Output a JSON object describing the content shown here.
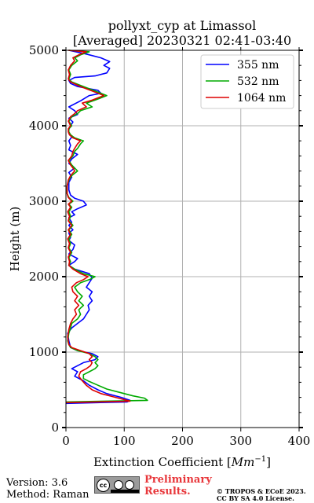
{
  "chart_data": {
    "type": "line",
    "title_line1": "pollyxt_cyp at Limassol",
    "title_line2": "[Averaged] 20230321 02:41-03:40",
    "xlabel": "Extinction Coefficient [",
    "xlabel_unit": "Mm",
    "xlabel_exp": "−1",
    "xlabel_end": "]",
    "ylabel": "Height (m)",
    "xlim": [
      0,
      400
    ],
    "ylim": [
      0,
      5000
    ],
    "xticks": [
      "0",
      "100",
      "200",
      "300",
      "400"
    ],
    "yticks": [
      "0",
      "1000",
      "2000",
      "3000",
      "4000",
      "5000"
    ],
    "grid": true,
    "legend_position": "top-right",
    "series": [
      {
        "name": "355 nm",
        "color": "#0000ff",
        "points": [
          [
            0,
            320
          ],
          [
            105,
            340
          ],
          [
            110,
            360
          ],
          [
            95,
            400
          ],
          [
            70,
            450
          ],
          [
            55,
            500
          ],
          [
            40,
            560
          ],
          [
            30,
            620
          ],
          [
            15,
            680
          ],
          [
            20,
            740
          ],
          [
            10,
            780
          ],
          [
            20,
            820
          ],
          [
            30,
            860
          ],
          [
            50,
            900
          ],
          [
            55,
            940
          ],
          [
            45,
            980
          ],
          [
            20,
            1020
          ],
          [
            8,
            1060
          ],
          [
            5,
            1150
          ],
          [
            3,
            1250
          ],
          [
            10,
            1320
          ],
          [
            20,
            1380
          ],
          [
            30,
            1440
          ],
          [
            35,
            1500
          ],
          [
            40,
            1560
          ],
          [
            38,
            1620
          ],
          [
            45,
            1680
          ],
          [
            40,
            1740
          ],
          [
            45,
            1800
          ],
          [
            35,
            1860
          ],
          [
            40,
            1920
          ],
          [
            45,
            1980
          ],
          [
            40,
            2040
          ],
          [
            15,
            2100
          ],
          [
            5,
            2150
          ],
          [
            15,
            2200
          ],
          [
            20,
            2240
          ],
          [
            5,
            2300
          ],
          [
            12,
            2360
          ],
          [
            15,
            2420
          ],
          [
            5,
            2480
          ],
          [
            8,
            2520
          ],
          [
            5,
            2580
          ],
          [
            12,
            2620
          ],
          [
            5,
            2680
          ],
          [
            10,
            2720
          ],
          [
            5,
            2780
          ],
          [
            15,
            2820
          ],
          [
            10,
            2860
          ],
          [
            20,
            2900
          ],
          [
            35,
            2950
          ],
          [
            30,
            3000
          ],
          [
            15,
            3040
          ],
          [
            8,
            3080
          ],
          [
            5,
            3150
          ],
          [
            5,
            3250
          ],
          [
            10,
            3320
          ],
          [
            5,
            3380
          ],
          [
            15,
            3440
          ],
          [
            5,
            3500
          ],
          [
            10,
            3560
          ],
          [
            20,
            3620
          ],
          [
            5,
            3680
          ],
          [
            8,
            3740
          ],
          [
            5,
            3800
          ],
          [
            10,
            3850
          ],
          [
            5,
            3900
          ],
          [
            5,
            3950
          ],
          [
            8,
            4000
          ],
          [
            12,
            4050
          ],
          [
            5,
            4100
          ],
          [
            20,
            4150
          ],
          [
            15,
            4200
          ],
          [
            5,
            4250
          ],
          [
            25,
            4330
          ],
          [
            40,
            4400
          ],
          [
            60,
            4430
          ],
          [
            55,
            4470
          ],
          [
            20,
            4520
          ],
          [
            8,
            4560
          ],
          [
            5,
            4600
          ],
          [
            15,
            4640
          ],
          [
            50,
            4660
          ],
          [
            70,
            4700
          ],
          [
            75,
            4760
          ],
          [
            65,
            4800
          ],
          [
            75,
            4850
          ],
          [
            60,
            4900
          ],
          [
            35,
            4950
          ],
          [
            5,
            5000
          ]
        ]
      },
      {
        "name": "532 nm",
        "color": "#00aa00",
        "points": [
          [
            0,
            340
          ],
          [
            140,
            360
          ],
          [
            135,
            390
          ],
          [
            115,
            420
          ],
          [
            95,
            460
          ],
          [
            70,
            510
          ],
          [
            55,
            560
          ],
          [
            40,
            610
          ],
          [
            30,
            650
          ],
          [
            30,
            700
          ],
          [
            40,
            740
          ],
          [
            50,
            780
          ],
          [
            55,
            820
          ],
          [
            50,
            860
          ],
          [
            55,
            900
          ],
          [
            50,
            940
          ],
          [
            40,
            980
          ],
          [
            20,
            1020
          ],
          [
            8,
            1060
          ],
          [
            5,
            1100
          ],
          [
            3,
            1150
          ],
          [
            5,
            1250
          ],
          [
            8,
            1320
          ],
          [
            10,
            1380
          ],
          [
            20,
            1440
          ],
          [
            25,
            1500
          ],
          [
            22,
            1560
          ],
          [
            30,
            1620
          ],
          [
            22,
            1680
          ],
          [
            28,
            1740
          ],
          [
            20,
            1800
          ],
          [
            15,
            1860
          ],
          [
            25,
            1920
          ],
          [
            40,
            1960
          ],
          [
            50,
            2000
          ],
          [
            30,
            2040
          ],
          [
            15,
            2100
          ],
          [
            5,
            2150
          ],
          [
            8,
            2200
          ],
          [
            5,
            2250
          ],
          [
            10,
            2320
          ],
          [
            5,
            2380
          ],
          [
            8,
            2440
          ],
          [
            5,
            2500
          ],
          [
            10,
            2560
          ],
          [
            5,
            2620
          ],
          [
            12,
            2680
          ],
          [
            5,
            2740
          ],
          [
            8,
            2800
          ],
          [
            5,
            2860
          ],
          [
            10,
            2920
          ],
          [
            5,
            2960
          ],
          [
            12,
            3000
          ],
          [
            5,
            3050
          ],
          [
            2,
            3100
          ],
          [
            2,
            3200
          ],
          [
            5,
            3280
          ],
          [
            10,
            3340
          ],
          [
            20,
            3400
          ],
          [
            15,
            3440
          ],
          [
            10,
            3480
          ],
          [
            5,
            3540
          ],
          [
            12,
            3600
          ],
          [
            15,
            3660
          ],
          [
            20,
            3700
          ],
          [
            25,
            3760
          ],
          [
            30,
            3800
          ],
          [
            15,
            3840
          ],
          [
            8,
            3880
          ],
          [
            5,
            3920
          ],
          [
            5,
            3960
          ],
          [
            10,
            4000
          ],
          [
            5,
            4060
          ],
          [
            10,
            4120
          ],
          [
            20,
            4160
          ],
          [
            25,
            4200
          ],
          [
            45,
            4250
          ],
          [
            35,
            4300
          ],
          [
            50,
            4340
          ],
          [
            70,
            4400
          ],
          [
            50,
            4460
          ],
          [
            30,
            4520
          ],
          [
            10,
            4580
          ],
          [
            5,
            4620
          ],
          [
            8,
            4680
          ],
          [
            5,
            4740
          ],
          [
            10,
            4800
          ],
          [
            20,
            4860
          ],
          [
            15,
            4900
          ],
          [
            25,
            4940
          ],
          [
            40,
            4980
          ],
          [
            5,
            5000
          ]
        ]
      },
      {
        "name": "1064 nm",
        "color": "#dd0000",
        "points": [
          [
            0,
            330
          ],
          [
            110,
            350
          ],
          [
            100,
            370
          ],
          [
            80,
            410
          ],
          [
            60,
            450
          ],
          [
            45,
            500
          ],
          [
            35,
            560
          ],
          [
            28,
            620
          ],
          [
            22,
            680
          ],
          [
            25,
            740
          ],
          [
            35,
            780
          ],
          [
            42,
            820
          ],
          [
            45,
            860
          ],
          [
            40,
            900
          ],
          [
            45,
            940
          ],
          [
            40,
            980
          ],
          [
            25,
            1020
          ],
          [
            10,
            1060
          ],
          [
            5,
            1100
          ],
          [
            3,
            1200
          ],
          [
            5,
            1300
          ],
          [
            8,
            1380
          ],
          [
            12,
            1440
          ],
          [
            18,
            1500
          ],
          [
            15,
            1560
          ],
          [
            22,
            1620
          ],
          [
            15,
            1680
          ],
          [
            20,
            1740
          ],
          [
            12,
            1800
          ],
          [
            10,
            1860
          ],
          [
            18,
            1920
          ],
          [
            30,
            1960
          ],
          [
            38,
            2000
          ],
          [
            25,
            2040
          ],
          [
            12,
            2100
          ],
          [
            5,
            2150
          ],
          [
            6,
            2200
          ],
          [
            4,
            2260
          ],
          [
            8,
            2320
          ],
          [
            4,
            2380
          ],
          [
            6,
            2440
          ],
          [
            3,
            2500
          ],
          [
            8,
            2560
          ],
          [
            4,
            2620
          ],
          [
            10,
            2680
          ],
          [
            4,
            2740
          ],
          [
            6,
            2800
          ],
          [
            3,
            2860
          ],
          [
            8,
            2920
          ],
          [
            4,
            2960
          ],
          [
            10,
            3000
          ],
          [
            4,
            3050
          ],
          [
            2,
            3100
          ],
          [
            2,
            3200
          ],
          [
            4,
            3280
          ],
          [
            8,
            3340
          ],
          [
            15,
            3400
          ],
          [
            12,
            3440
          ],
          [
            8,
            3480
          ],
          [
            4,
            3540
          ],
          [
            10,
            3600
          ],
          [
            12,
            3660
          ],
          [
            15,
            3700
          ],
          [
            20,
            3760
          ],
          [
            25,
            3800
          ],
          [
            12,
            3840
          ],
          [
            6,
            3880
          ],
          [
            4,
            3920
          ],
          [
            4,
            3960
          ],
          [
            8,
            4000
          ],
          [
            4,
            4060
          ],
          [
            8,
            4120
          ],
          [
            15,
            4160
          ],
          [
            20,
            4200
          ],
          [
            35,
            4250
          ],
          [
            28,
            4300
          ],
          [
            45,
            4340
          ],
          [
            65,
            4400
          ],
          [
            45,
            4460
          ],
          [
            25,
            4520
          ],
          [
            8,
            4580
          ],
          [
            4,
            4620
          ],
          [
            6,
            4680
          ],
          [
            4,
            4740
          ],
          [
            8,
            4800
          ],
          [
            15,
            4860
          ],
          [
            12,
            4900
          ],
          [
            22,
            4940
          ],
          [
            35,
            4980
          ],
          [
            4,
            5000
          ]
        ]
      }
    ]
  },
  "footer": {
    "version": "Version: 3.6",
    "method": "Method: Raman",
    "preliminary_line1": "Preliminary",
    "preliminary_line2": "Results.",
    "copyright_line1": "© TROPOS & ECoE 2023.",
    "copyright_line2": "CC BY SA 4.0 License.",
    "license_badge": "cc"
  }
}
